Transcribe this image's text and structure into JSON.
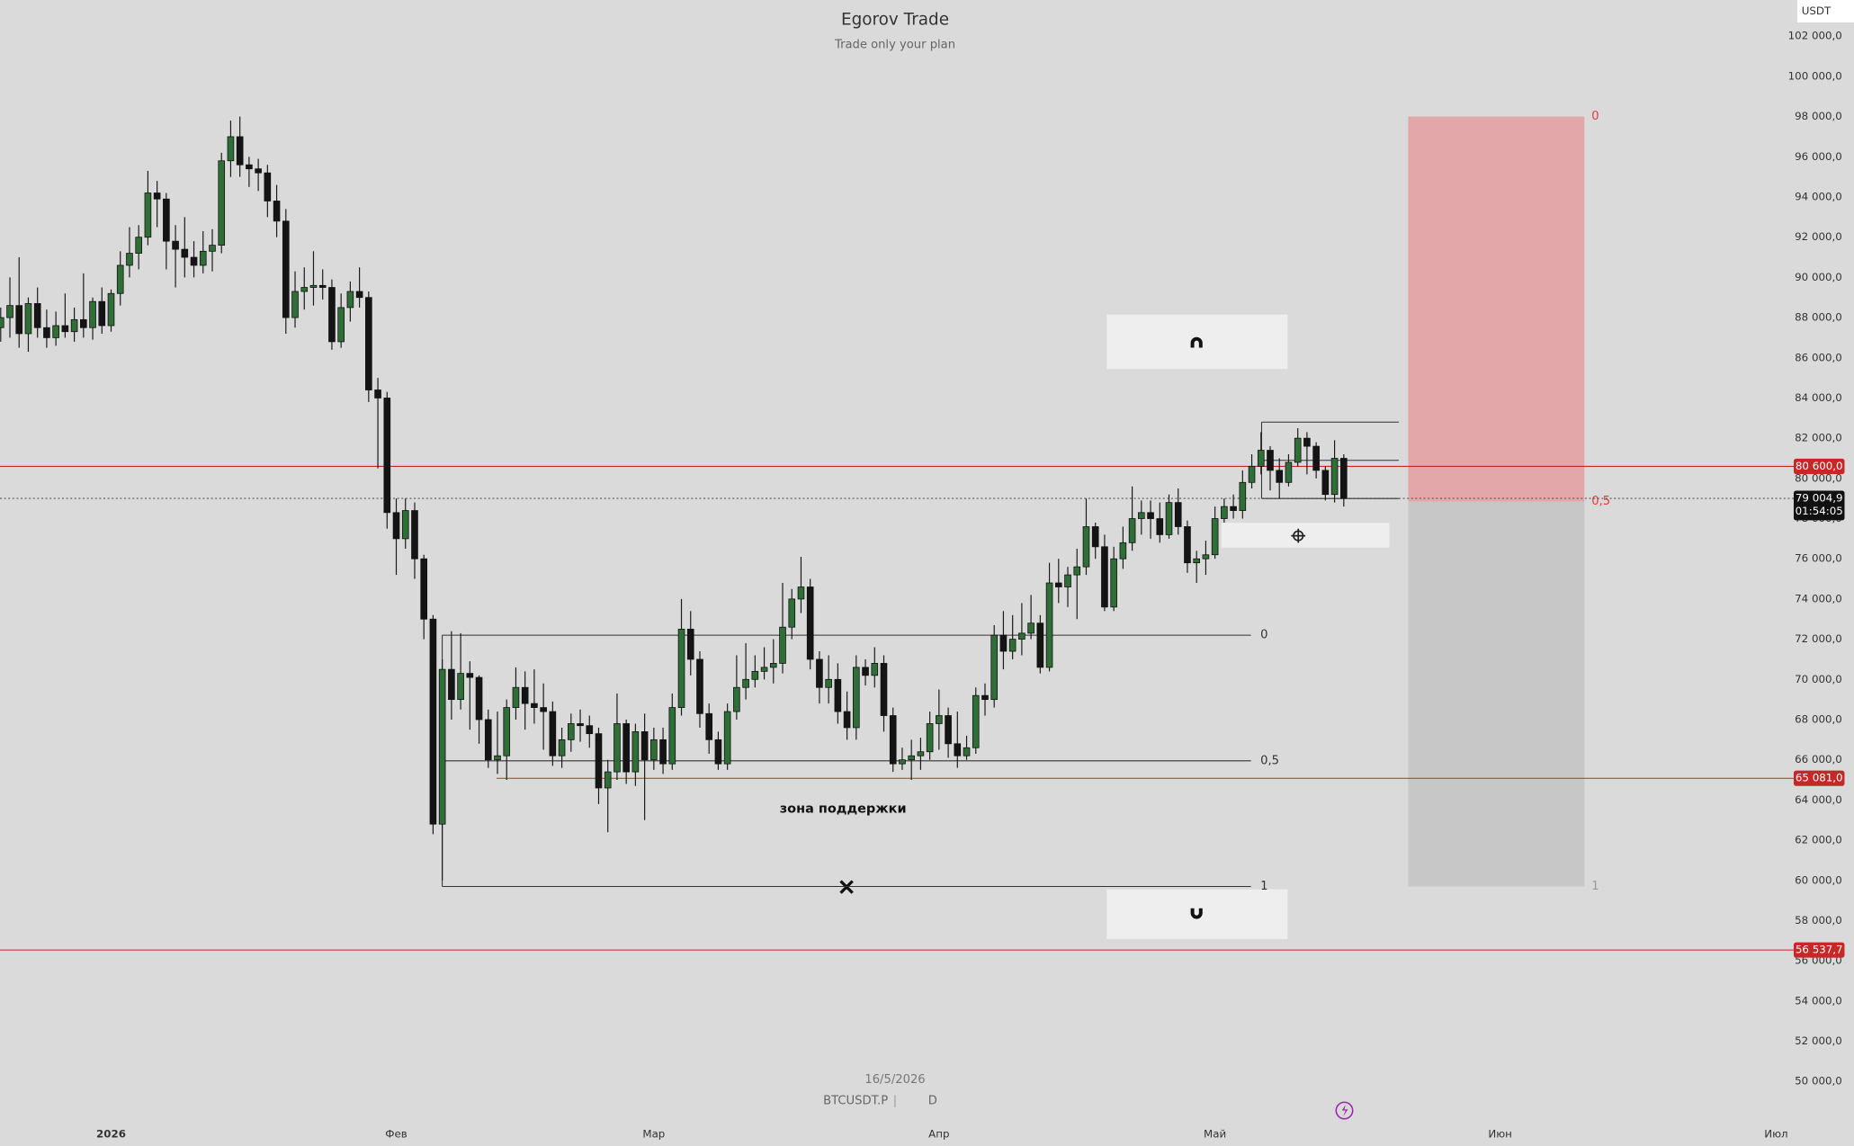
{
  "chart_data": {
    "type": "candlestick",
    "title": "Egorov Trade",
    "subtitle": "Trade only your plan",
    "date": "16/5/2026",
    "symbol": "BTCUSDT.P",
    "interval": "D",
    "currency": "USDT",
    "categories": [
      null,
      null,
      null,
      null,
      null,
      null,
      null,
      null,
      null,
      null,
      null,
      null,
      "2026",
      null,
      null,
      null,
      null,
      null,
      null,
      null,
      null,
      null,
      null,
      null,
      null,
      null,
      null,
      null,
      null,
      null,
      null,
      null,
      null,
      null,
      null,
      null,
      null,
      null,
      null,
      null,
      null,
      null,
      null,
      "Фев",
      null,
      null,
      null,
      null,
      null,
      null,
      null,
      null,
      null,
      null,
      null,
      null,
      null,
      null,
      null,
      null,
      null,
      null,
      null,
      null,
      null,
      null,
      null,
      null,
      null,
      null,
      null,
      "Мар",
      null,
      null,
      null,
      null,
      null,
      null,
      null,
      null,
      null,
      null,
      null,
      null,
      null,
      null,
      null,
      null,
      null,
      null,
      null,
      null,
      null,
      null,
      null,
      null,
      null,
      null,
      null,
      null,
      null,
      null,
      "Апр",
      null,
      null,
      null,
      null,
      null,
      null,
      null,
      null,
      null,
      null,
      null,
      null,
      null,
      null,
      null,
      null,
      null,
      null,
      null,
      null,
      null,
      null,
      null,
      null,
      null,
      null,
      null,
      null,
      null,
      "Май",
      null,
      null,
      null,
      null,
      null,
      null,
      null,
      null,
      null,
      null,
      null,
      null,
      null,
      null,
      null,
      null,
      null,
      null,
      null,
      null,
      null,
      null,
      null,
      null,
      null,
      null,
      null,
      null,
      null,
      null,
      "Июн",
      null,
      null,
      null,
      null,
      null,
      null,
      null,
      null,
      null,
      null,
      null,
      null,
      null,
      null,
      null,
      null,
      null,
      null,
      null,
      null,
      null,
      null,
      null,
      null,
      null,
      null,
      null,
      null,
      null,
      "Июл"
    ],
    "open": [
      87500,
      88000,
      88600,
      87200,
      88700,
      87500,
      87000,
      87600,
      87300,
      87900,
      87500,
      88800,
      87600,
      89200,
      90600,
      91200,
      92000,
      94200,
      93900,
      91800,
      91400,
      91000,
      90600,
      91300,
      91600,
      95800,
      97000,
      95600,
      95400,
      95200,
      93800,
      92800,
      88000,
      89300,
      89500,
      89600,
      89500,
      86800,
      88500,
      89300,
      89000,
      84400,
      84000,
      78300,
      77000,
      78400,
      76000,
      73000,
      62800,
      70500,
      69000,
      70300,
      70100,
      68000,
      66000,
      66200,
      68600,
      69600,
      68800,
      68600,
      68400,
      66200,
      67000,
      67800,
      67700,
      67300,
      64600,
      65400,
      67800,
      65400,
      67400,
      66000,
      67000,
      65800,
      68600,
      72500,
      71000,
      68300,
      67000,
      65800,
      68400,
      69600,
      70000,
      70400,
      70600,
      70800,
      72600,
      74000,
      74600,
      71000,
      69600,
      70000,
      68400,
      67600,
      70600,
      70200,
      70800,
      68200,
      65800,
      66000,
      66200,
      66400,
      67800,
      68200,
      66800,
      66200,
      66600,
      69200,
      69000,
      72200,
      71400,
      72000,
      72300,
      72800,
      70600,
      74800,
      74600,
      75200,
      75600,
      77600,
      76600,
      73600,
      76000,
      76800,
      78000,
      78300,
      78000,
      77200,
      78800,
      77600,
      75800,
      76000,
      76200,
      78000,
      78600,
      78400,
      79800,
      80600,
      81400,
      80400,
      79800,
      80800,
      82000,
      81600,
      80400,
      79200,
      81000,
      null,
      null,
      null,
      null,
      null,
      null,
      null,
      null,
      null,
      null,
      null,
      null,
      null,
      null,
      null,
      null,
      null,
      null,
      null,
      null,
      null,
      null,
      null,
      null,
      null,
      null,
      null,
      null,
      null,
      null,
      null,
      null,
      null,
      null,
      null,
      null,
      null,
      null,
      null,
      null,
      null,
      null,
      null,
      null,
      null,
      null,
      null
    ],
    "high": [
      88500,
      90000,
      91000,
      89000,
      89500,
      88400,
      88300,
      89200,
      88500,
      90200,
      89000,
      89500,
      89400,
      91300,
      92500,
      92600,
      95300,
      94800,
      94200,
      92600,
      93000,
      91800,
      92300,
      92400,
      96200,
      97800,
      98000,
      96000,
      95900,
      95600,
      94600,
      93400,
      90300,
      90500,
      91300,
      90400,
      89900,
      89200,
      89800,
      90500,
      89300,
      85000,
      84300,
      79000,
      79000,
      78800,
      76200,
      73200,
      71000,
      72400,
      72300,
      70900,
      70200,
      68500,
      68400,
      69000,
      70600,
      70400,
      70500,
      69800,
      68900,
      67600,
      68300,
      68500,
      68200,
      67600,
      66000,
      69300,
      68000,
      67800,
      68300,
      67600,
      67600,
      69300,
      74000,
      73400,
      71400,
      68800,
      67400,
      68800,
      71200,
      71800,
      71200,
      71600,
      72000,
      74800,
      74500,
      76100,
      75000,
      71400,
      71200,
      70800,
      69400,
      71200,
      71000,
      71600,
      71200,
      68600,
      66600,
      67000,
      67100,
      68400,
      69500,
      68600,
      68400,
      67200,
      69600,
      69800,
      72700,
      73400,
      73200,
      73800,
      74200,
      73200,
      75800,
      76000,
      75600,
      76500,
      79000,
      77800,
      77200,
      76600,
      77600,
      79600,
      78900,
      78900,
      78800,
      79200,
      79500,
      77900,
      76400,
      76900,
      78600,
      79000,
      79200,
      80400,
      81200,
      82300,
      81600,
      81000,
      81200,
      82500,
      82300,
      81800,
      80600,
      81900,
      81200,
      null,
      null,
      null,
      null,
      null,
      null,
      null,
      null,
      null,
      null,
      null,
      null,
      null,
      null,
      null,
      null,
      null,
      null,
      null,
      null,
      null,
      null,
      null,
      null,
      null,
      null,
      null,
      null,
      null,
      null,
      null,
      null,
      null,
      null,
      null,
      null,
      null,
      null,
      null,
      null,
      null,
      null,
      null,
      null,
      null,
      null,
      null
    ],
    "low": [
      86800,
      87000,
      86500,
      86300,
      87000,
      86500,
      86600,
      87000,
      86800,
      87000,
      86900,
      87200,
      87300,
      88600,
      90000,
      90400,
      91600,
      92500,
      90400,
      89500,
      90000,
      90000,
      90200,
      90300,
      91200,
      95000,
      95000,
      94500,
      94300,
      93000,
      92000,
      87200,
      87500,
      88400,
      88600,
      88900,
      86400,
      86500,
      87800,
      88500,
      83800,
      80500,
      77500,
      75200,
      76500,
      75000,
      72000,
      62300,
      60000,
      68000,
      68500,
      67500,
      66800,
      65600,
      65300,
      65000,
      68000,
      67500,
      67800,
      66500,
      65700,
      65600,
      66400,
      66900,
      66600,
      63800,
      62400,
      65000,
      64800,
      64700,
      63000,
      65500,
      65300,
      65500,
      68200,
      70200,
      67600,
      66300,
      65500,
      65500,
      68000,
      69000,
      69600,
      70000,
      69800,
      70300,
      72000,
      73300,
      70500,
      68800,
      68800,
      67800,
      67000,
      67000,
      69700,
      69600,
      67400,
      65400,
      65500,
      65000,
      65500,
      66000,
      66500,
      66100,
      65600,
      66000,
      66300,
      68200,
      68600,
      70500,
      71000,
      71200,
      72000,
      70300,
      70400,
      73800,
      73600,
      73000,
      75200,
      76000,
      73400,
      73400,
      75500,
      76400,
      77200,
      77000,
      76800,
      77000,
      77200,
      75300,
      74800,
      75200,
      76000,
      77800,
      78000,
      78000,
      79500,
      80200,
      79400,
      79000,
      79600,
      80600,
      80200,
      80000,
      78900,
      78800,
      78600,
      null,
      null,
      null,
      null,
      null,
      null,
      null,
      null,
      null,
      null,
      null,
      null,
      null,
      null,
      null,
      null,
      null,
      null,
      null,
      null,
      null,
      null,
      null,
      null,
      null,
      null,
      null,
      null,
      null,
      null,
      null,
      null,
      null,
      null,
      null,
      null,
      null,
      null,
      null,
      null,
      null,
      null,
      null,
      null,
      null,
      null,
      null
    ],
    "close": [
      88000,
      88600,
      87200,
      88700,
      87500,
      87000,
      87600,
      87300,
      87900,
      87500,
      88800,
      87600,
      89200,
      90600,
      91200,
      92000,
      94200,
      93900,
      91800,
      91400,
      91000,
      90600,
      91300,
      91600,
      95800,
      97000,
      95600,
      95400,
      95200,
      93800,
      92800,
      88000,
      89300,
      89500,
      89600,
      89500,
      86800,
      88500,
      89300,
      89000,
      84400,
      84000,
      78300,
      77000,
      78400,
      76000,
      73000,
      62800,
      70500,
      69000,
      70300,
      70100,
      68000,
      66000,
      66200,
      68600,
      69600,
      68800,
      68600,
      68400,
      66200,
      67000,
      67800,
      67700,
      67300,
      64600,
      65400,
      67800,
      65400,
      67400,
      66000,
      67000,
      65800,
      68600,
      72500,
      71000,
      68300,
      67000,
      65800,
      68400,
      69600,
      70000,
      70400,
      70600,
      70800,
      72600,
      74000,
      74600,
      71000,
      69600,
      70000,
      68400,
      67600,
      70600,
      70200,
      70800,
      68200,
      65800,
      66000,
      66200,
      66400,
      67800,
      68200,
      66800,
      66200,
      66600,
      69200,
      69000,
      72200,
      71400,
      72000,
      72300,
      72800,
      70600,
      74800,
      74600,
      75200,
      75600,
      77600,
      76600,
      73600,
      76000,
      76800,
      78000,
      78300,
      78000,
      77200,
      78800,
      77600,
      75800,
      76000,
      76200,
      78000,
      78600,
      78400,
      79800,
      80600,
      81400,
      80400,
      79800,
      80800,
      82000,
      81600,
      80400,
      79200,
      81000,
      79004.9,
      null,
      null,
      null,
      null,
      null,
      null,
      null,
      null,
      null,
      null,
      null,
      null,
      null,
      null,
      null,
      null,
      null,
      null,
      null,
      null,
      null,
      null,
      null,
      null,
      null,
      null,
      null,
      null,
      null,
      null,
      null,
      null,
      null,
      null,
      null,
      null,
      null,
      null,
      null,
      null,
      null,
      null,
      null,
      null,
      null,
      null,
      null
    ],
    "up_color": "#2f6e37",
    "down_color": "#141414",
    "ylim": [
      48200,
      103800
    ],
    "yticks": [
      {
        "value": 50000,
        "label": "50 000,0"
      },
      {
        "value": 52000,
        "label": "52 000,0"
      },
      {
        "value": 54000,
        "label": "54 000,0"
      },
      {
        "value": 56000,
        "label": "56 000,0"
      },
      {
        "value": 58000,
        "label": "58 000,0"
      },
      {
        "value": 60000,
        "label": "60 000,0"
      },
      {
        "value": 62000,
        "label": "62 000,0"
      },
      {
        "value": 64000,
        "label": "64 000,0"
      },
      {
        "value": 66000,
        "label": "66 000,0"
      },
      {
        "value": 68000,
        "label": "68 000,0"
      },
      {
        "value": 70000,
        "label": "70 000,0"
      },
      {
        "value": 72000,
        "label": "72 000,0"
      },
      {
        "value": 74000,
        "label": "74 000,0"
      },
      {
        "value": 76000,
        "label": "76 000,0"
      },
      {
        "value": 78000,
        "label": "78 000,0"
      },
      {
        "value": 80000,
        "label": "80 000,0"
      },
      {
        "value": 82000,
        "label": "82 000,0"
      },
      {
        "value": 84000,
        "label": "84 000,0"
      },
      {
        "value": 86000,
        "label": "86 000,0"
      },
      {
        "value": 88000,
        "label": "88 000,0"
      },
      {
        "value": 90000,
        "label": "90 000,0"
      },
      {
        "value": 92000,
        "label": "92 000,0"
      },
      {
        "value": 94000,
        "label": "94 000,0"
      },
      {
        "value": 96000,
        "label": "96 000,0"
      },
      {
        "value": 98000,
        "label": "98 000,0"
      },
      {
        "value": 100000,
        "label": "100 000,0"
      },
      {
        "value": 102000,
        "label": "102 000,0"
      }
    ],
    "grid": false,
    "last_price": {
      "value": 79004.9,
      "label": "79 004,9"
    },
    "countdown": "01:54:05",
    "price_line_color": "#c62828",
    "price_lines": [
      {
        "value": 80600,
        "label": "80 600,0"
      },
      {
        "value": 65081,
        "label": "65 081,0"
      },
      {
        "value": 56537.7,
        "label": "56 537,7"
      }
    ],
    "fib": {
      "levels": [
        72200,
        65950,
        59700
      ],
      "labels": [
        "0",
        "0,5",
        "1"
      ]
    },
    "zone_label": "зона поддержки",
    "range_box": [
      82800,
      80900,
      79000
    ],
    "position": {
      "levels": [
        98000,
        78850,
        59700
      ],
      "labels": [
        "0",
        "0,5",
        "1"
      ],
      "stop_color": "#e3a6a9",
      "target_color": "#c7c7c7"
    }
  }
}
